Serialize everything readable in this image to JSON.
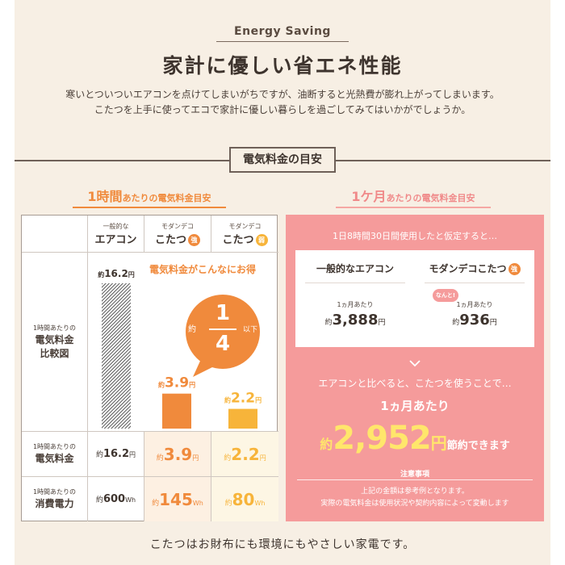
{
  "tag": "Energy Saving",
  "title": "家計に優しい省エネ性能",
  "intro": [
    "寒いとついついエアコンを点けてしまいがちですが、油断すると光熱費が膨れ上がってしまいます。",
    "こたつを上手に使ってエコで家計に優しい暮らしを過ごしてみてはいかがでしょうか。"
  ],
  "section_title": "電気料金の目安",
  "left_heading": {
    "big": "1時間",
    "small": "あたりの電気料金目安"
  },
  "right_heading": {
    "big": "1ケ月",
    "small": "あたりの電気料金目安"
  },
  "table": {
    "columns": [
      {
        "sub": "一般的な",
        "main": "エアコン",
        "badge": ""
      },
      {
        "sub": "モダンデコ",
        "main": "こたつ",
        "badge": "強"
      },
      {
        "sub": "モダンデコ",
        "main": "こたつ",
        "badge": "弱"
      }
    ],
    "chart_row_label": {
      "sub": "1時間あたりの",
      "lines": [
        "電気料金",
        "比較図"
      ]
    },
    "headline": "電気料金がこんなにお得",
    "bubble": {
      "pre": "約",
      "numerator": "1",
      "denominator": "4",
      "post": "以下"
    },
    "rows": [
      {
        "label_sub": "1時間あたりの",
        "label_main": "電気料金",
        "values": [
          {
            "pre": "約",
            "num": "16.2",
            "unit": "円"
          },
          {
            "pre": "約",
            "num": "3.9",
            "unit": "円"
          },
          {
            "pre": "約",
            "num": "2.2",
            "unit": "円"
          }
        ]
      },
      {
        "label_sub": "1時間あたりの",
        "label_main": "消費電力",
        "values": [
          {
            "pre": "約",
            "num": "600",
            "unit": "Wh"
          },
          {
            "pre": "約",
            "num": "145",
            "unit": "Wh"
          },
          {
            "pre": "約",
            "num": "80",
            "unit": "Wh"
          }
        ]
      }
    ]
  },
  "chart_data": {
    "type": "bar",
    "categories": [
      "一般的なエアコン",
      "モダンデコこたつ 強",
      "モダンデコこたつ 弱"
    ],
    "values": [
      16.2,
      3.9,
      2.2
    ],
    "value_labels": [
      {
        "pre": "約",
        "num": "16.2",
        "unit": "円"
      },
      {
        "pre": "約",
        "num": "3.9",
        "unit": "円"
      },
      {
        "pre": "約",
        "num": "2.2",
        "unit": "円"
      }
    ],
    "colors": [
      "#555555",
      "#f08a3c",
      "#f7b43a"
    ],
    "ylim": [
      0,
      16.2
    ],
    "grid": false,
    "title": "",
    "xlabel": "",
    "ylabel": ""
  },
  "monthly": {
    "assumption": "1日8時間30日間使用したと仮定すると…",
    "cards": [
      {
        "title": "一般的なエアコン",
        "badge": "",
        "callout": "",
        "sub": "1ヵ月あたり",
        "pre": "約",
        "num": "3,888",
        "unit": "円"
      },
      {
        "title": "モダンデコこたつ",
        "badge": "強",
        "callout": "なんと!",
        "sub": "1ヵ月あたり",
        "pre": "約",
        "num": "936",
        "unit": "円"
      }
    ],
    "compare": "エアコンと比べると、こたつを使うことで…",
    "per_month": "1ヵ月あたり",
    "saving": {
      "pre": "約",
      "num": "2,952",
      "unit": "円",
      "tail": "節約できます"
    },
    "note_title": "注意事項",
    "notes": [
      "上記の金額は参考例となります。",
      "実際の電気料金は使用状況や契約内容によって変動します"
    ]
  },
  "footer": "こたつはお財布にも環境にもやさしい家電です。",
  "colors": {
    "accent_orange": "#f08a3c",
    "accent_yellow": "#f7b43a",
    "pink_panel": "#f59b9b",
    "highlight_yellow": "#ffe66b"
  }
}
